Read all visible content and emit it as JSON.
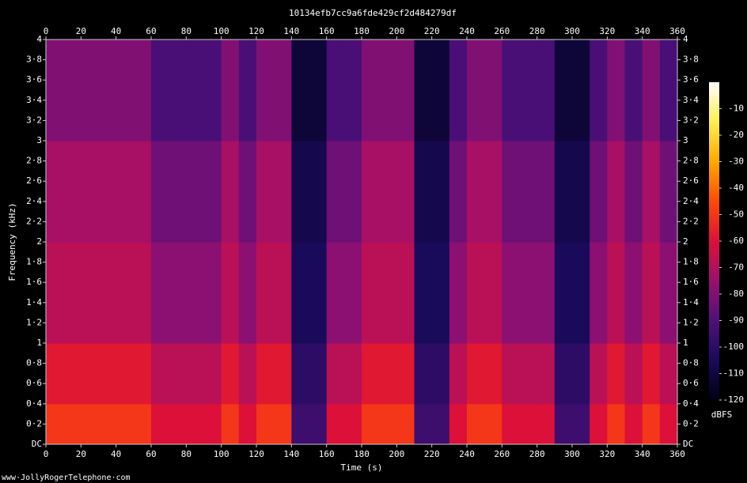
{
  "chart_data": {
    "type": "heatmap",
    "title": "10134efb7cc9a6fde429cf2d484279df",
    "x_label": "Time (s)",
    "y_label": "Frequency (kHz)",
    "colorbar_label": "dBFS",
    "footer": "www·JollyRogerTelephone·com",
    "xbins": [
      0,
      10,
      20,
      30,
      40,
      50,
      60,
      70,
      80,
      90,
      100,
      110,
      120,
      130,
      140,
      150,
      160,
      170,
      180,
      190,
      200,
      210,
      220,
      230,
      240,
      250,
      260,
      270,
      280,
      290,
      300,
      310,
      320,
      330,
      340,
      350,
      360
    ],
    "ybins": [
      0,
      0.4,
      1,
      2,
      3,
      4
    ],
    "values": [
      [
        -50,
        -58,
        -68,
        -72,
        -80
      ],
      [
        -50,
        -58,
        -68,
        -72,
        -80
      ],
      [
        -50,
        -58,
        -68,
        -72,
        -80
      ],
      [
        -50,
        -58,
        -68,
        -72,
        -80
      ],
      [
        -50,
        -58,
        -68,
        -72,
        -80
      ],
      [
        -50,
        -58,
        -68,
        -72,
        -80
      ],
      [
        -60,
        -68,
        -78,
        -84,
        -92
      ],
      [
        -60,
        -68,
        -78,
        -84,
        -92
      ],
      [
        -60,
        -68,
        -78,
        -84,
        -92
      ],
      [
        -60,
        -68,
        -78,
        -84,
        -92
      ],
      [
        -50,
        -58,
        -68,
        -72,
        -80
      ],
      [
        -60,
        -68,
        -78,
        -84,
        -92
      ],
      [
        -50,
        -58,
        -68,
        -72,
        -80
      ],
      [
        -50,
        -58,
        -68,
        -72,
        -80
      ],
      [
        -95,
        -100,
        -105,
        -108,
        -112
      ],
      [
        -95,
        -100,
        -105,
        -108,
        -112
      ],
      [
        -60,
        -68,
        -78,
        -84,
        -92
      ],
      [
        -60,
        -68,
        -78,
        -84,
        -92
      ],
      [
        -50,
        -58,
        -68,
        -72,
        -80
      ],
      [
        -50,
        -58,
        -68,
        -72,
        -80
      ],
      [
        -50,
        -58,
        -68,
        -72,
        -80
      ],
      [
        -95,
        -100,
        -105,
        -108,
        -112
      ],
      [
        -95,
        -100,
        -105,
        -108,
        -112
      ],
      [
        -60,
        -68,
        -78,
        -84,
        -92
      ],
      [
        -50,
        -58,
        -68,
        -72,
        -80
      ],
      [
        -50,
        -58,
        -68,
        -72,
        -80
      ],
      [
        -60,
        -68,
        -78,
        -84,
        -92
      ],
      [
        -60,
        -68,
        -78,
        -84,
        -92
      ],
      [
        -60,
        -68,
        -78,
        -84,
        -92
      ],
      [
        -95,
        -100,
        -105,
        -108,
        -112
      ],
      [
        -95,
        -100,
        -105,
        -108,
        -112
      ],
      [
        -60,
        -68,
        -78,
        -84,
        -92
      ],
      [
        -50,
        -58,
        -68,
        -72,
        -80
      ],
      [
        -60,
        -68,
        -78,
        -84,
        -92
      ],
      [
        -50,
        -58,
        -68,
        -72,
        -80
      ],
      [
        -60,
        -68,
        -78,
        -84,
        -92
      ]
    ],
    "xlim": [
      0,
      360
    ],
    "xticks": [
      0,
      20,
      40,
      60,
      80,
      100,
      120,
      140,
      160,
      180,
      200,
      220,
      240,
      260,
      280,
      300,
      320,
      340,
      360
    ],
    "ylim": [
      0,
      4
    ],
    "yticks": [
      {
        "value": 0,
        "label": "DC"
      },
      {
        "value": 0.2,
        "label": "0·2"
      },
      {
        "value": 0.4,
        "label": "0·4"
      },
      {
        "value": 0.6,
        "label": "0·6"
      },
      {
        "value": 0.8,
        "label": "0·8"
      },
      1,
      {
        "value": 1.2,
        "label": "1·2"
      },
      {
        "value": 1.4,
        "label": "1·4"
      },
      {
        "value": 1.6,
        "label": "1·6"
      },
      {
        "value": 1.8,
        "label": "1·8"
      },
      2,
      {
        "value": 2.2,
        "label": "2·2"
      },
      {
        "value": 2.4,
        "label": "2·4"
      },
      {
        "value": 2.6,
        "label": "2·6"
      },
      {
        "value": 2.8,
        "label": "2·8"
      },
      3,
      {
        "value": 3.2,
        "label": "3·2"
      },
      {
        "value": 3.4,
        "label": "3·4"
      },
      {
        "value": 3.6,
        "label": "3·6"
      },
      {
        "value": 3.8,
        "label": "3·8"
      },
      4
    ],
    "clim": [
      -120,
      0
    ],
    "cticks": [
      -10,
      -20,
      -30,
      -40,
      -50,
      -60,
      -70,
      -80,
      -90,
      -100,
      -110,
      -120
    ],
    "colormap": [
      "#000014",
      "#1a0a5a",
      "#50107a",
      "#9a1070",
      "#dc1038",
      "#ff4a08",
      "#ffa800",
      "#ffee50",
      "#ffffff"
    ]
  }
}
